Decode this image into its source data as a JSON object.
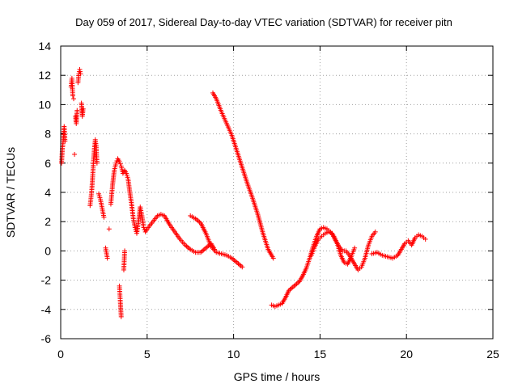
{
  "chart_data": {
    "type": "scatter",
    "title": "Day 059 of 2017, Sidereal Day-to-day VTEC variation (SDTVAR) for receiver pitn",
    "xlabel": "GPS time / hours",
    "ylabel": "SDTVAR / TECUs",
    "xlim": [
      0,
      25
    ],
    "ylim": [
      -6,
      14
    ],
    "xticks": [
      "0",
      "5",
      "10",
      "15",
      "20",
      "25"
    ],
    "yticks": [
      "-6",
      "-4",
      "-2",
      "0",
      "2",
      "4",
      "6",
      "8",
      "10",
      "12",
      "14"
    ],
    "grid": true,
    "marker": "+",
    "series": [
      {
        "name": "SDTVAR",
        "color": "#ff0000",
        "points": [
          [
            0.05,
            6.0
          ],
          [
            0.1,
            7.0
          ],
          [
            0.15,
            7.6
          ],
          [
            0.2,
            8.5
          ],
          [
            0.25,
            7.5
          ],
          [
            0.6,
            11.2
          ],
          [
            0.65,
            11.8
          ],
          [
            0.7,
            10.6
          ],
          [
            0.75,
            10.4
          ],
          [
            0.8,
            6.6
          ],
          [
            0.85,
            9.2
          ],
          [
            0.9,
            8.7
          ],
          [
            0.95,
            9.6
          ],
          [
            1.0,
            11.5
          ],
          [
            1.05,
            12.1
          ],
          [
            1.1,
            12.4
          ],
          [
            1.15,
            12.1
          ],
          [
            1.2,
            10.1
          ],
          [
            1.25,
            9.2
          ],
          [
            1.3,
            9.7
          ],
          [
            1.7,
            3.1
          ],
          [
            1.75,
            3.6
          ],
          [
            1.8,
            4.2
          ],
          [
            1.85,
            5.1
          ],
          [
            1.9,
            6.2
          ],
          [
            1.95,
            7.0
          ],
          [
            2.0,
            7.6
          ],
          [
            2.05,
            7.2
          ],
          [
            2.1,
            6.0
          ],
          [
            2.2,
            3.9
          ],
          [
            2.3,
            3.5
          ],
          [
            2.4,
            2.9
          ],
          [
            2.5,
            2.3
          ],
          [
            2.6,
            0.2
          ],
          [
            2.7,
            -0.5
          ],
          [
            2.8,
            1.5
          ],
          [
            2.9,
            3.2
          ],
          [
            3.0,
            4.5
          ],
          [
            3.1,
            5.5
          ],
          [
            3.2,
            6.0
          ],
          [
            3.3,
            6.3
          ],
          [
            3.4,
            6.1
          ],
          [
            3.5,
            5.8
          ],
          [
            3.6,
            5.3
          ],
          [
            3.7,
            5.5
          ],
          [
            3.8,
            5.3
          ],
          [
            3.9,
            4.9
          ],
          [
            4.0,
            4.0
          ],
          [
            4.1,
            3.2
          ],
          [
            4.2,
            2.2
          ],
          [
            4.3,
            1.6
          ],
          [
            4.4,
            1.2
          ],
          [
            4.5,
            2.0
          ],
          [
            4.6,
            3.0
          ],
          [
            4.7,
            2.4
          ],
          [
            4.8,
            1.6
          ],
          [
            4.9,
            1.3
          ],
          [
            5.0,
            1.5
          ],
          [
            5.2,
            1.8
          ],
          [
            5.4,
            2.1
          ],
          [
            5.6,
            2.4
          ],
          [
            5.8,
            2.5
          ],
          [
            6.0,
            2.4
          ],
          [
            6.3,
            1.8
          ],
          [
            6.6,
            1.3
          ],
          [
            6.9,
            0.8
          ],
          [
            7.2,
            0.4
          ],
          [
            7.5,
            0.1
          ],
          [
            7.8,
            -0.1
          ],
          [
            8.1,
            -0.1
          ],
          [
            8.4,
            0.2
          ],
          [
            8.7,
            0.5
          ],
          [
            8.9,
            0.1
          ],
          [
            3.4,
            -2.4
          ],
          [
            3.45,
            -3.5
          ],
          [
            3.5,
            -4.5
          ],
          [
            3.65,
            -1.3
          ],
          [
            3.7,
            0.0
          ],
          [
            7.5,
            2.4
          ],
          [
            7.8,
            2.2
          ],
          [
            8.1,
            1.9
          ],
          [
            8.4,
            1.2
          ],
          [
            8.7,
            0.3
          ],
          [
            9.0,
            -0.1
          ],
          [
            9.3,
            -0.2
          ],
          [
            9.6,
            -0.3
          ],
          [
            9.9,
            -0.5
          ],
          [
            10.2,
            -0.8
          ],
          [
            10.5,
            -1.1
          ],
          [
            8.8,
            10.8
          ],
          [
            9.0,
            10.4
          ],
          [
            9.3,
            9.5
          ],
          [
            9.6,
            8.7
          ],
          [
            9.9,
            7.9
          ],
          [
            10.2,
            6.8
          ],
          [
            10.5,
            5.7
          ],
          [
            10.8,
            4.6
          ],
          [
            11.1,
            3.6
          ],
          [
            11.4,
            2.5
          ],
          [
            11.7,
            1.2
          ],
          [
            12.0,
            0.1
          ],
          [
            12.3,
            -0.5
          ],
          [
            12.2,
            -3.7
          ],
          [
            12.4,
            -3.8
          ],
          [
            12.6,
            -3.7
          ],
          [
            12.8,
            -3.6
          ],
          [
            13.0,
            -3.2
          ],
          [
            13.2,
            -2.7
          ],
          [
            13.5,
            -2.4
          ],
          [
            13.8,
            -2.1
          ],
          [
            14.0,
            -1.7
          ],
          [
            14.2,
            -1.2
          ],
          [
            14.4,
            -0.5
          ],
          [
            14.6,
            0.3
          ],
          [
            14.8,
            1.0
          ],
          [
            15.0,
            1.5
          ],
          [
            15.2,
            1.6
          ],
          [
            15.4,
            1.5
          ],
          [
            15.6,
            1.3
          ],
          [
            15.8,
            1.0
          ],
          [
            16.0,
            0.5
          ],
          [
            16.2,
            -0.3
          ],
          [
            16.4,
            -0.8
          ],
          [
            16.6,
            -0.9
          ],
          [
            16.8,
            -0.4
          ],
          [
            17.0,
            0.2
          ],
          [
            14.5,
            -0.3
          ],
          [
            14.7,
            0.3
          ],
          [
            14.9,
            0.8
          ],
          [
            15.1,
            1.0
          ],
          [
            15.3,
            1.2
          ],
          [
            15.5,
            1.3
          ],
          [
            15.7,
            1.2
          ],
          [
            15.9,
            0.7
          ],
          [
            16.1,
            0.3
          ],
          [
            16.3,
            0.0
          ],
          [
            16.5,
            0.0
          ],
          [
            16.7,
            -0.3
          ],
          [
            17.0,
            -0.9
          ],
          [
            17.2,
            -1.3
          ],
          [
            17.4,
            -1.1
          ],
          [
            17.6,
            -0.5
          ],
          [
            17.8,
            0.4
          ],
          [
            18.0,
            1.0
          ],
          [
            18.2,
            1.3
          ],
          [
            18.0,
            -0.2
          ],
          [
            18.3,
            -0.1
          ],
          [
            18.6,
            -0.3
          ],
          [
            18.9,
            -0.4
          ],
          [
            19.2,
            -0.5
          ],
          [
            19.5,
            -0.3
          ],
          [
            19.7,
            0.1
          ],
          [
            19.9,
            0.5
          ],
          [
            20.1,
            0.7
          ],
          [
            20.3,
            0.4
          ],
          [
            20.5,
            0.9
          ],
          [
            20.7,
            1.1
          ],
          [
            20.9,
            1.0
          ],
          [
            21.1,
            0.8
          ]
        ]
      }
    ]
  }
}
